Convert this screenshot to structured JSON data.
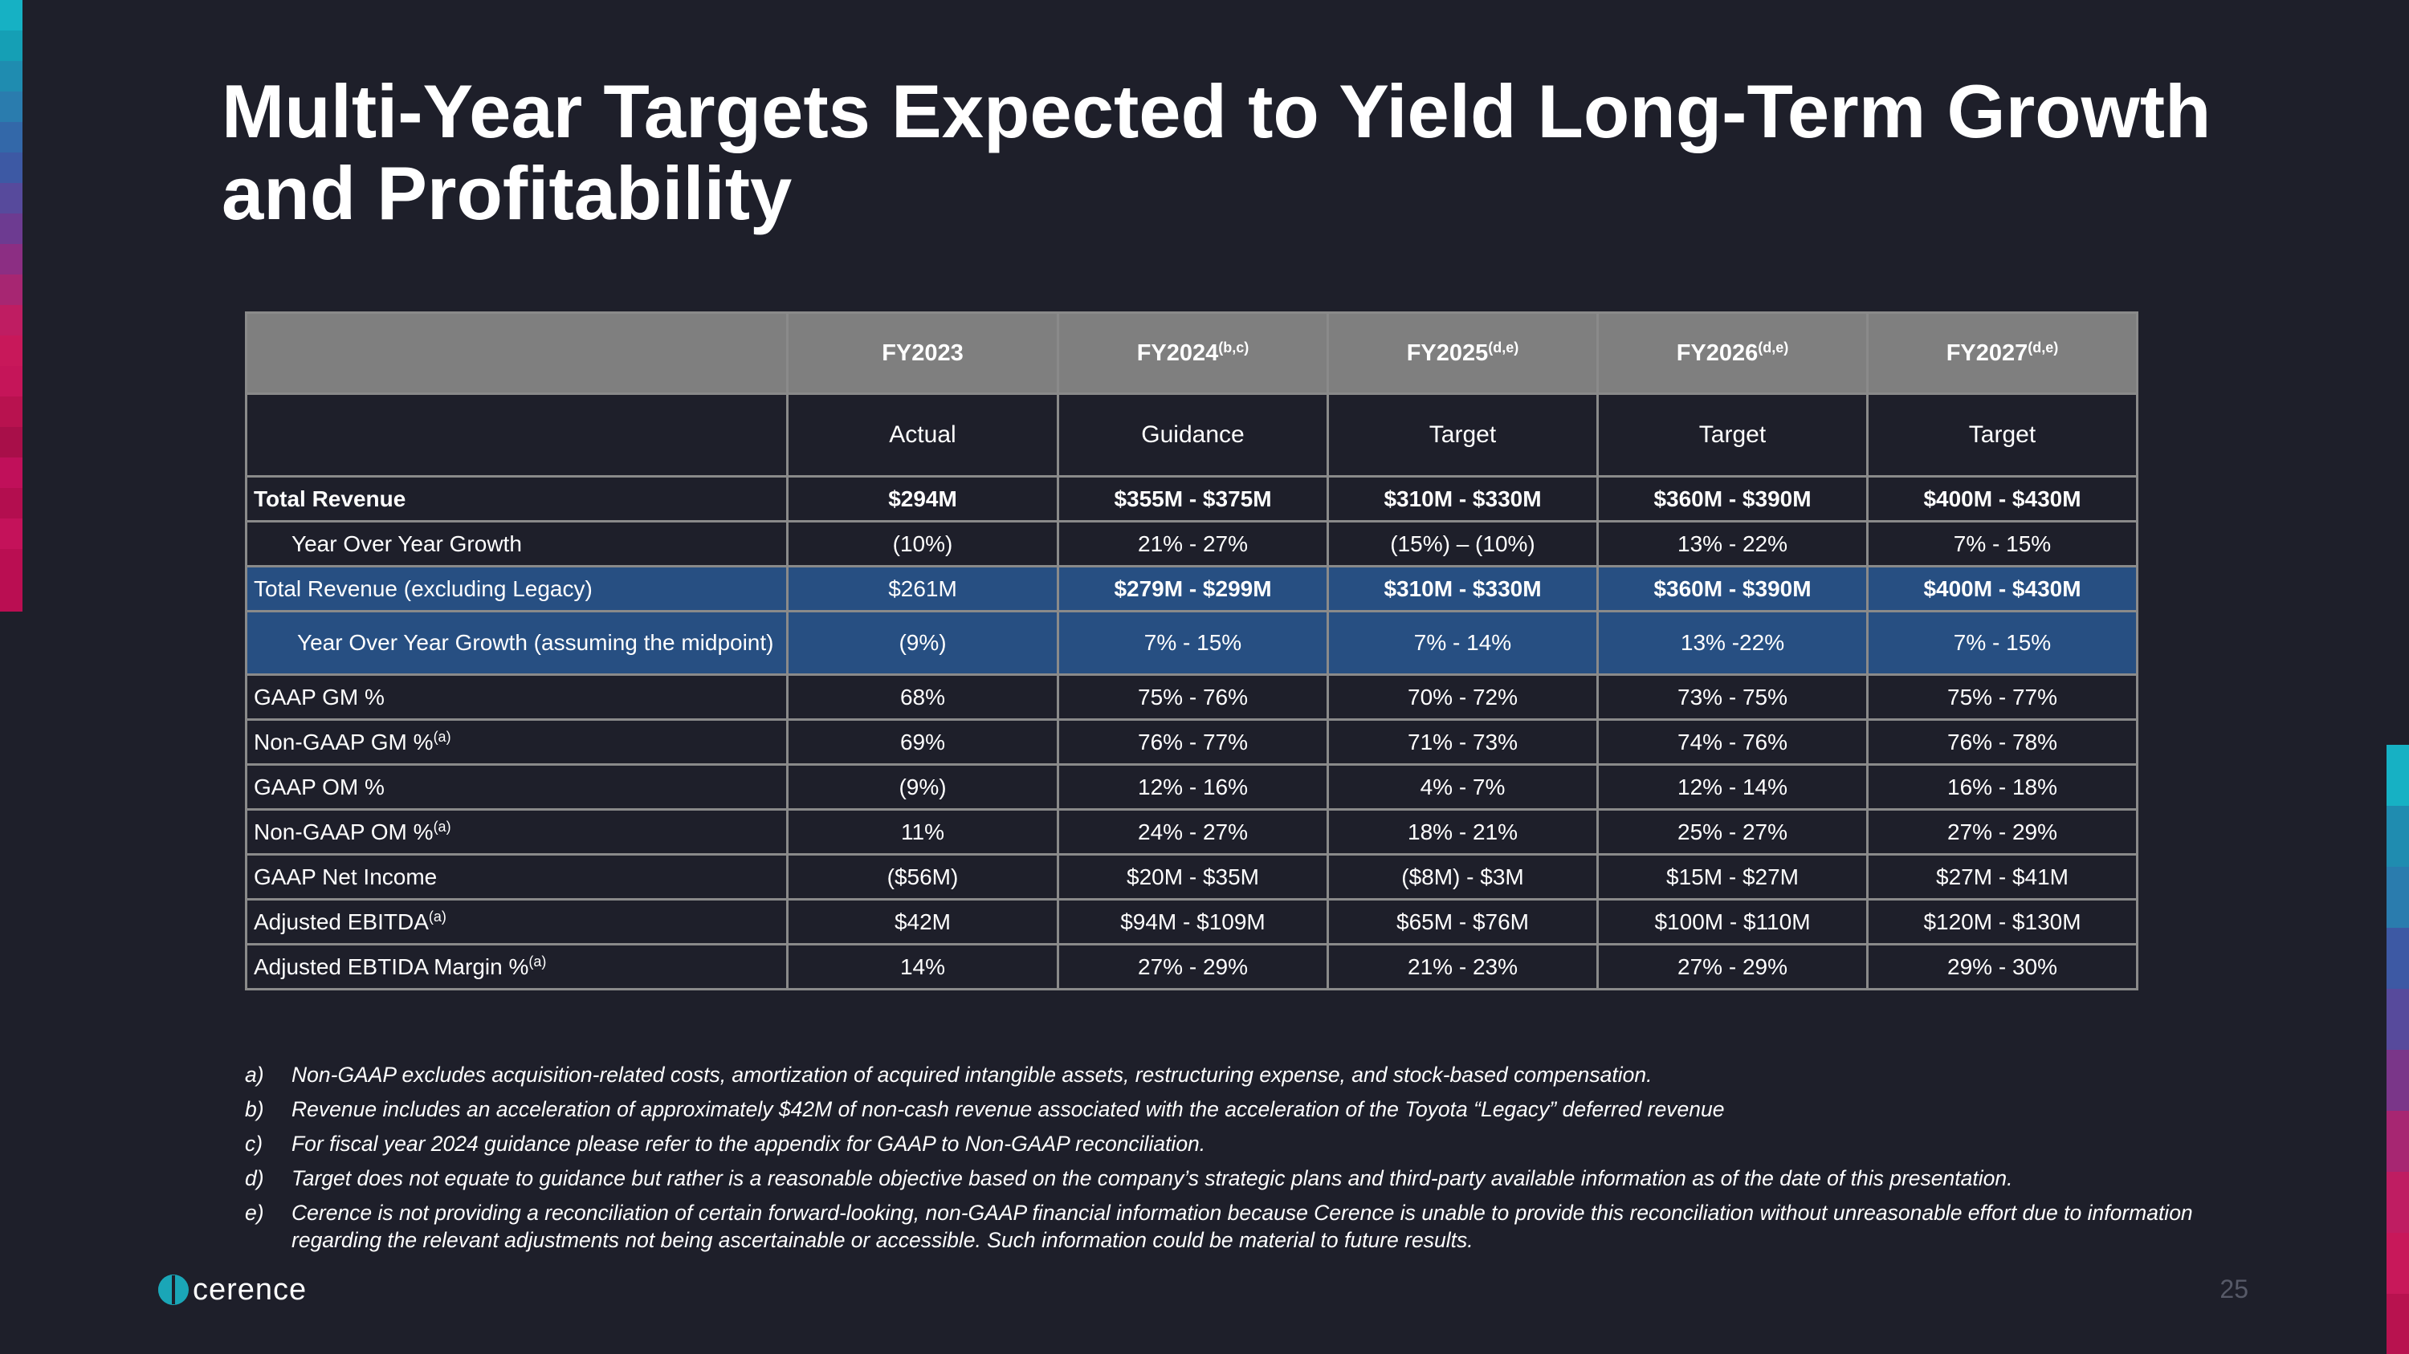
{
  "title": "Multi-Year Targets Expected to Yield Long-Term Growth and Profitability",
  "colors": {
    "background": "#1e1f2a",
    "header_gray": "#7f7f7f",
    "highlight_blue": "#274f82",
    "accent_teal": "#1aa6b7",
    "accent_magenta": "#c2185b"
  },
  "table": {
    "headers": [
      {
        "label": "FY2023",
        "sup": ""
      },
      {
        "label": "FY2024",
        "sup": "(b,c)"
      },
      {
        "label": "FY2025",
        "sup": "(d,e)"
      },
      {
        "label": "FY2026",
        "sup": "(d,e)"
      },
      {
        "label": "FY2027",
        "sup": "(d,e)"
      }
    ],
    "subheaders": [
      "Actual",
      "Guidance",
      "Target",
      "Target",
      "Target"
    ],
    "rows": [
      {
        "label": "Total Revenue",
        "sup": "",
        "values": [
          "$294M",
          "$355M - $375M",
          "$310M - $330M",
          "$360M - $390M",
          "$400M - $430M"
        ]
      },
      {
        "label": "Year Over Year Growth",
        "sup": "",
        "values": [
          "(10%)",
          "21% -  27%",
          "(15%) – (10%)",
          "13% - 22%",
          "7% - 15%"
        ]
      },
      {
        "label": "Total Revenue (excluding Legacy)",
        "sup": "",
        "values": [
          "$261M",
          "$279M - $299M",
          "$310M - $330M",
          "$360M - $390M",
          "$400M - $430M"
        ]
      },
      {
        "label": "Year Over Year Growth (assuming the midpoint)",
        "sup": "",
        "values": [
          "(9%)",
          "7% - 15%",
          "7% - 14%",
          "13% -22%",
          "7% - 15%"
        ]
      },
      {
        "label": "GAAP GM %",
        "sup": "",
        "values": [
          "68%",
          "75% - 76%",
          "70% - 72%",
          "73% - 75%",
          "75% - 77%"
        ]
      },
      {
        "label": "Non-GAAP GM %",
        "sup": "(a)",
        "values": [
          "69%",
          "76% - 77%",
          "71% - 73%",
          "74% - 76%",
          "76% - 78%"
        ]
      },
      {
        "label": "GAAP OM %",
        "sup": "",
        "values": [
          "(9%)",
          "12% - 16%",
          "4% - 7%",
          "12% -  14%",
          "16% - 18%"
        ]
      },
      {
        "label": "Non-GAAP OM %",
        "sup": "(a)",
        "values": [
          "11%",
          "24% - 27%",
          "18% - 21%",
          "25% - 27%",
          "27% - 29%"
        ]
      },
      {
        "label": "GAAP Net Income",
        "sup": "",
        "values": [
          "($56M)",
          "$20M - $35M",
          "($8M) - $3M",
          "$15M - $27M",
          "$27M - $41M"
        ]
      },
      {
        "label": "Adjusted EBITDA",
        "sup": "(a)",
        "values": [
          "$42M",
          "$94M - $109M",
          "$65M - $76M",
          "$100M - $110M",
          "$120M - $130M"
        ]
      },
      {
        "label": "Adjusted EBTIDA Margin %",
        "sup": "(a)",
        "values": [
          "14%",
          "27% - 29%",
          "21% - 23%",
          "27% - 29%",
          "29% - 30%"
        ]
      }
    ]
  },
  "notes": [
    {
      "letter": "a)",
      "text": "Non-GAAP excludes acquisition-related costs, amortization of acquired intangible assets, restructuring expense, and stock-based compensation."
    },
    {
      "letter": "b)",
      "text": "Revenue includes an acceleration of approximately $42M of non-cash revenue associated with the acceleration of the Toyota “Legacy” deferred revenue"
    },
    {
      "letter": "c)",
      "text": "For fiscal year 2024 guidance please refer to the appendix for GAAP to Non-GAAP reconciliation."
    },
    {
      "letter": "d)",
      "text": "Target does not equate to guidance but rather is a reasonable objective based on the company’s strategic plans and third-party available information as of the date of this presentation."
    },
    {
      "letter": "e)",
      "text": "Cerence is not providing a reconciliation of certain forward-looking, non-GAAP financial information because Cerence is unable to provide this reconciliation without unreasonable effort due to information regarding the relevant adjustments not being ascertainable or accessible.  Such information could be material to future results."
    }
  ],
  "footer": {
    "logo_text": "cerence",
    "page_number": "25"
  }
}
